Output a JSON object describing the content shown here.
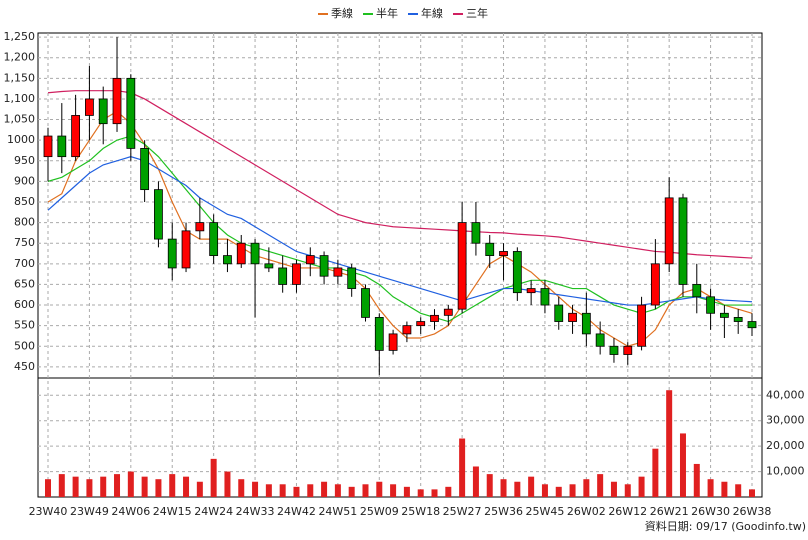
{
  "chart_data": {
    "type": "candlestick",
    "source": "資料日期: 09/17 (Goodinfo.tw)",
    "grid": true,
    "up_color": "#ff0000",
    "down_color": "#00a000",
    "categories": [
      "23W40",
      null,
      null,
      "23W49",
      null,
      null,
      "24W06",
      null,
      null,
      "24W15",
      null,
      null,
      "24W24",
      null,
      null,
      "24W33",
      null,
      null,
      "24W42",
      null,
      null,
      "24W51",
      null,
      null,
      "25W09",
      null,
      null,
      "25W18",
      null,
      null,
      "25W27",
      null,
      null,
      "25W36",
      null,
      null,
      "25W45",
      null,
      null,
      "26W02",
      null,
      null,
      "26W12",
      null,
      null,
      "26W21",
      null,
      null,
      "26W30",
      null,
      null,
      "26W38"
    ],
    "open": [
      960,
      1010,
      960,
      1060,
      1100,
      1040,
      1150,
      980,
      880,
      760,
      690,
      780,
      800,
      720,
      700,
      750,
      700,
      690,
      650,
      700,
      720,
      670,
      690,
      640,
      570,
      490,
      530,
      550,
      560,
      575,
      590,
      800,
      750,
      720,
      730,
      630,
      640,
      600,
      560,
      580,
      530,
      500,
      480,
      500,
      600,
      700,
      860,
      650,
      620,
      580,
      570,
      560
    ],
    "high": [
      1030,
      1090,
      1110,
      1180,
      1130,
      1250,
      1160,
      1000,
      900,
      800,
      800,
      860,
      820,
      760,
      770,
      760,
      740,
      720,
      710,
      740,
      730,
      710,
      700,
      650,
      580,
      540,
      560,
      570,
      590,
      600,
      850,
      850,
      770,
      750,
      740,
      660,
      660,
      620,
      600,
      630,
      560,
      520,
      510,
      620,
      760,
      910,
      870,
      700,
      640,
      600,
      590,
      580
    ],
    "low": [
      900,
      920,
      950,
      1000,
      990,
      1020,
      950,
      850,
      740,
      660,
      680,
      760,
      700,
      680,
      690,
      570,
      680,
      630,
      630,
      670,
      650,
      650,
      620,
      560,
      430,
      480,
      510,
      530,
      540,
      550,
      580,
      720,
      690,
      660,
      610,
      600,
      580,
      540,
      530,
      500,
      480,
      460,
      455,
      490,
      590,
      680,
      620,
      580,
      540,
      520,
      530,
      525
    ],
    "close": [
      1010,
      960,
      1060,
      1100,
      1040,
      1150,
      980,
      880,
      760,
      690,
      780,
      800,
      720,
      700,
      750,
      700,
      690,
      650,
      700,
      720,
      670,
      690,
      640,
      570,
      490,
      530,
      550,
      560,
      575,
      590,
      800,
      750,
      720,
      730,
      630,
      640,
      600,
      560,
      580,
      530,
      500,
      480,
      500,
      600,
      700,
      860,
      650,
      620,
      580,
      570,
      560,
      545
    ],
    "ylim": [
      423,
      1260
    ],
    "yticks": [
      450,
      500,
      550,
      600,
      650,
      700,
      750,
      800,
      850,
      900,
      950,
      1000,
      {
        "value": 1050,
        "label": "1,050"
      },
      {
        "value": 1100,
        "label": "1,100"
      },
      {
        "value": 1150,
        "label": "1,150"
      },
      {
        "value": 1200,
        "label": "1,200"
      },
      {
        "value": 1250,
        "label": "1,250"
      }
    ],
    "series": [
      {
        "name": "季線",
        "color": "#e07020",
        "values": [
          850,
          870,
          950,
          1000,
          1050,
          1070,
          1040,
          990,
          930,
          850,
          780,
          760,
          760,
          760,
          740,
          720,
          710,
          700,
          690,
          690,
          690,
          680,
          670,
          640,
          590,
          550,
          520,
          520,
          530,
          550,
          600,
          650,
          700,
          720,
          700,
          680,
          650,
          620,
          590,
          570,
          540,
          520,
          500,
          510,
          540,
          600,
          630,
          640,
          620,
          600,
          590,
          580
        ]
      },
      {
        "name": "半年",
        "color": "#20c020",
        "values": [
          900,
          910,
          930,
          950,
          980,
          1000,
          1010,
          990,
          960,
          920,
          880,
          840,
          800,
          770,
          750,
          740,
          730,
          720,
          710,
          700,
          690,
          690,
          680,
          670,
          650,
          620,
          600,
          580,
          570,
          560,
          580,
          600,
          620,
          640,
          650,
          660,
          660,
          650,
          640,
          640,
          620,
          600,
          590,
          580,
          590,
          610,
          620,
          620,
          610,
          600,
          600,
          600
        ]
      },
      {
        "name": "年線",
        "color": "#2060e0",
        "values": [
          830,
          860,
          890,
          920,
          940,
          950,
          960,
          950,
          930,
          910,
          890,
          860,
          840,
          820,
          810,
          790,
          770,
          750,
          730,
          720,
          710,
          700,
          690,
          680,
          670,
          660,
          650,
          640,
          630,
          620,
          610,
          620,
          630,
          640,
          640,
          635,
          630,
          625,
          620,
          615,
          610,
          605,
          600,
          600,
          605,
          610,
          615,
          620,
          615,
          612,
          610,
          608
        ]
      },
      {
        "name": "三年",
        "color": "#d02060",
        "values": [
          1115,
          1118,
          1120,
          1120,
          1120,
          1120,
          1115,
          1100,
          1080,
          1060,
          1040,
          1020,
          1000,
          980,
          960,
          940,
          920,
          900,
          880,
          860,
          840,
          820,
          810,
          800,
          795,
          790,
          788,
          786,
          784,
          782,
          780,
          778,
          776,
          775,
          772,
          770,
          768,
          765,
          760,
          755,
          750,
          745,
          740,
          735,
          730,
          728,
          725,
          722,
          720,
          718,
          716,
          714
        ]
      }
    ],
    "volume": {
      "color": "#e02020",
      "values": [
        7000,
        9000,
        8000,
        7000,
        8000,
        9000,
        10000,
        8000,
        7000,
        9000,
        8000,
        6000,
        15000,
        10000,
        7000,
        6000,
        5000,
        5000,
        4000,
        5000,
        6000,
        5000,
        4000,
        5000,
        6000,
        5000,
        4000,
        3000,
        3000,
        4000,
        23000,
        12000,
        9000,
        7000,
        6000,
        8000,
        5000,
        4000,
        5000,
        7000,
        9000,
        6000,
        5000,
        8000,
        19000,
        42000,
        25000,
        13000,
        7000,
        6000,
        5000,
        3000
      ],
      "ylim": [
        0,
        46800
      ],
      "yticks": [
        {
          "value": 10000,
          "label": "10,000"
        },
        {
          "value": 20000,
          "label": "20,000"
        },
        {
          "value": 30000,
          "label": "30,000"
        },
        {
          "value": 40000,
          "label": "40,000"
        }
      ]
    }
  }
}
